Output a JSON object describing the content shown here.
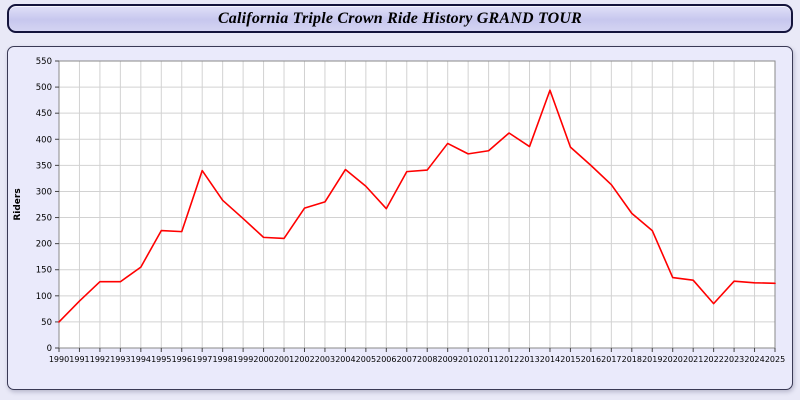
{
  "window": {
    "title": "California Triple Crown Ride History GRAND TOUR"
  },
  "colors": {
    "page_background": "#e9e9f7",
    "title_bar_fill": "#ccccee",
    "title_bar_border": "#14143c",
    "panel_fill": "#eaeafb",
    "panel_border": "#3a3a55",
    "plot_background": "#ffffff",
    "grid_line": "#d2d2d2",
    "axis_border": "#8a8a8a",
    "tick_color": "#444444",
    "series_line": "#ff0000"
  },
  "chart_data": {
    "type": "line",
    "title": "California Triple Crown Ride History GRAND TOUR",
    "xlabel": "",
    "ylabel": "Riders",
    "ylim": [
      0,
      550
    ],
    "ytick_step": 50,
    "grid": true,
    "legend_position": "none",
    "series": [
      {
        "name": "Riders",
        "color": "#ff0000",
        "values": [
          50,
          90,
          127,
          127,
          155,
          225,
          223,
          340,
          283,
          248,
          212,
          210,
          268,
          280,
          342,
          310,
          267,
          338,
          341,
          392,
          372,
          378,
          412,
          386,
          494,
          385,
          350,
          313,
          258,
          225,
          135,
          130,
          85,
          128,
          125,
          124
        ]
      }
    ],
    "x": [
      1990,
      1991,
      1992,
      1993,
      1994,
      1995,
      1996,
      1997,
      1998,
      1999,
      2000,
      2001,
      2002,
      2003,
      2004,
      2005,
      2006,
      2007,
      2008,
      2009,
      2010,
      2011,
      2012,
      2013,
      2014,
      2015,
      2016,
      2017,
      2018,
      2019,
      2020,
      2021,
      2022,
      2023,
      2024,
      2025
    ]
  }
}
